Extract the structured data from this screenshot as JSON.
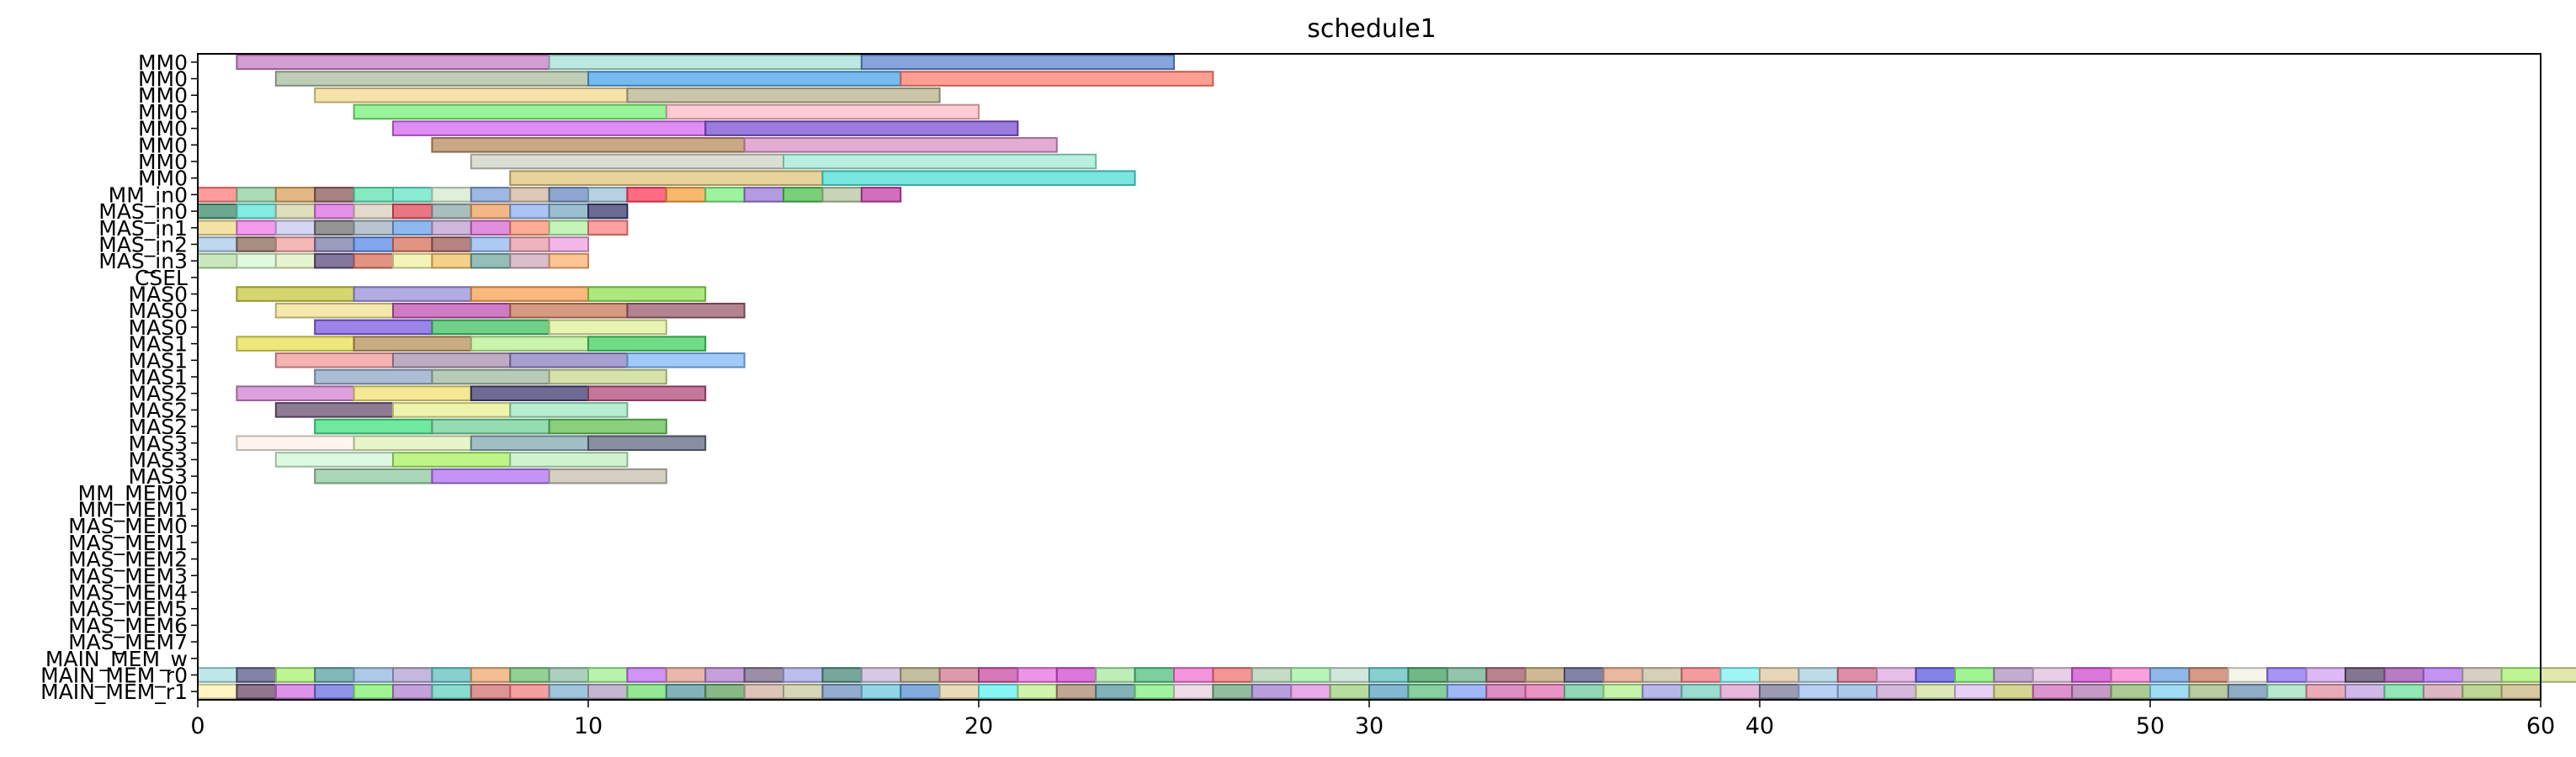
{
  "chart_data": {
    "type": "gantt",
    "title": "schedule1",
    "xlim": [
      0,
      60
    ],
    "xticks": [
      "0",
      "10",
      "20",
      "30",
      "40",
      "50",
      "60"
    ],
    "grid": false,
    "rows": [
      "MM0",
      "MM0",
      "MM0",
      "MM0",
      "MM0",
      "MM0",
      "MM0",
      "MM0",
      "MM_in0",
      "MAS_in0",
      "MAS_in1",
      "MAS_in2",
      "MAS_in3",
      "CSEL",
      "MAS0",
      "MAS0",
      "MAS0",
      "MAS1",
      "MAS1",
      "MAS1",
      "MAS2",
      "MAS2",
      "MAS2",
      "MAS3",
      "MAS3",
      "MAS3",
      "MM_MEM0",
      "MM_MEM1",
      "MAS_MEM0",
      "MAS_MEM1",
      "MAS_MEM2",
      "MAS_MEM3",
      "MAS_MEM4",
      "MAS_MEM5",
      "MAS_MEM6",
      "MAS_MEM7",
      "MAIN_MEM_w",
      "MAIN_MEM_r0",
      "MAIN_MEM_r1"
    ],
    "tasks": [
      {
        "row": 0,
        "start": 1,
        "end": 9,
        "color": "#c77dc4"
      },
      {
        "row": 0,
        "start": 9,
        "end": 17,
        "color": "#a7e0d8"
      },
      {
        "row": 0,
        "start": 17,
        "end": 25,
        "color": "#5f86d0"
      },
      {
        "row": 1,
        "start": 2,
        "end": 10,
        "color": "#a9bb9d"
      },
      {
        "row": 1,
        "start": 10,
        "end": 18,
        "color": "#4aa3e8"
      },
      {
        "row": 1,
        "start": 18,
        "end": 26,
        "color": "#ff7f6e"
      },
      {
        "row": 2,
        "start": 3,
        "end": 11,
        "color": "#f3d98e"
      },
      {
        "row": 2,
        "start": 11,
        "end": 19,
        "color": "#b8b38d"
      },
      {
        "row": 3,
        "start": 4,
        "end": 12,
        "color": "#77f077"
      },
      {
        "row": 3,
        "start": 12,
        "end": 20,
        "color": "#ffb9c5"
      },
      {
        "row": 4,
        "start": 5,
        "end": 13,
        "color": "#d467f2"
      },
      {
        "row": 4,
        "start": 13,
        "end": 21,
        "color": "#7a4fd3"
      },
      {
        "row": 5,
        "start": 6,
        "end": 14,
        "color": "#b88a5e"
      },
      {
        "row": 5,
        "start": 14,
        "end": 22,
        "color": "#d992c4"
      },
      {
        "row": 6,
        "start": 7,
        "end": 15,
        "color": "#cfd3c3"
      },
      {
        "row": 6,
        "start": 15,
        "end": 23,
        "color": "#a0ead4"
      },
      {
        "row": 7,
        "start": 8,
        "end": 16,
        "color": "#e0c47a"
      },
      {
        "row": 7,
        "start": 16,
        "end": 24,
        "color": "#4dded6"
      },
      {
        "row": 8,
        "start": 0,
        "end": 1,
        "color": "#ff7a7a"
      },
      {
        "row": 8,
        "start": 1,
        "end": 2,
        "color": "#8fcf9f"
      },
      {
        "row": 8,
        "start": 2,
        "end": 3,
        "color": "#d9a05b"
      },
      {
        "row": 8,
        "start": 3,
        "end": 4,
        "color": "#8a5a5a"
      },
      {
        "row": 8,
        "start": 4,
        "end": 5,
        "color": "#5fe0b0"
      },
      {
        "row": 8,
        "start": 5,
        "end": 6,
        "color": "#64e5c5"
      },
      {
        "row": 8,
        "start": 6,
        "end": 7,
        "color": "#d4ead0"
      },
      {
        "row": 8,
        "start": 7,
        "end": 8,
        "color": "#7ea0d8"
      },
      {
        "row": 8,
        "start": 8,
        "end": 9,
        "color": "#d3b6a0"
      },
      {
        "row": 8,
        "start": 9,
        "end": 10,
        "color": "#6a8ac0"
      },
      {
        "row": 8,
        "start": 10,
        "end": 11,
        "color": "#9fc0d8"
      },
      {
        "row": 8,
        "start": 11,
        "end": 12,
        "color": "#ff3a5a"
      },
      {
        "row": 8,
        "start": 12,
        "end": 13,
        "color": "#f7a13b"
      },
      {
        "row": 8,
        "start": 13,
        "end": 14,
        "color": "#7ef07e"
      },
      {
        "row": 8,
        "start": 14,
        "end": 15,
        "color": "#9a7ad8"
      },
      {
        "row": 8,
        "start": 15,
        "end": 16,
        "color": "#4cc04c"
      },
      {
        "row": 8,
        "start": 16,
        "end": 17,
        "color": "#b5c4a0"
      },
      {
        "row": 8,
        "start": 17,
        "end": 18,
        "color": "#c43ca8"
      },
      {
        "row": 9,
        "start": 0,
        "end": 1,
        "color": "#3d8a6a"
      },
      {
        "row": 9,
        "start": 1,
        "end": 2,
        "color": "#5ce5d8"
      },
      {
        "row": 9,
        "start": 2,
        "end": 3,
        "color": "#d4d4a8"
      },
      {
        "row": 9,
        "start": 3,
        "end": 4,
        "color": "#d96ee0"
      },
      {
        "row": 9,
        "start": 4,
        "end": 5,
        "color": "#d8cfbd"
      },
      {
        "row": 9,
        "start": 5,
        "end": 6,
        "color": "#e04a5a"
      },
      {
        "row": 9,
        "start": 6,
        "end": 7,
        "color": "#8fa8a8"
      },
      {
        "row": 9,
        "start": 7,
        "end": 8,
        "color": "#f0a060"
      },
      {
        "row": 9,
        "start": 8,
        "end": 9,
        "color": "#8fb0f0"
      },
      {
        "row": 9,
        "start": 9,
        "end": 10,
        "color": "#7aa8c0"
      },
      {
        "row": 9,
        "start": 10,
        "end": 11,
        "color": "#3a3a70"
      },
      {
        "row": 10,
        "start": 0,
        "end": 1,
        "color": "#f0d88a"
      },
      {
        "row": 10,
        "start": 1,
        "end": 2,
        "color": "#f07ae8"
      },
      {
        "row": 10,
        "start": 2,
        "end": 3,
        "color": "#c8c8f0"
      },
      {
        "row": 10,
        "start": 3,
        "end": 4,
        "color": "#707070"
      },
      {
        "row": 10,
        "start": 4,
        "end": 5,
        "color": "#a0b0c0"
      },
      {
        "row": 10,
        "start": 5,
        "end": 6,
        "color": "#6aa0e8"
      },
      {
        "row": 10,
        "start": 6,
        "end": 7,
        "color": "#c0a0d0"
      },
      {
        "row": 10,
        "start": 7,
        "end": 8,
        "color": "#d46ad0"
      },
      {
        "row": 10,
        "start": 8,
        "end": 9,
        "color": "#ff9070"
      },
      {
        "row": 10,
        "start": 9,
        "end": 10,
        "color": "#b0f0a0"
      },
      {
        "row": 10,
        "start": 10,
        "end": 11,
        "color": "#ff8080"
      },
      {
        "row": 11,
        "start": 0,
        "end": 1,
        "color": "#a8c8e8"
      },
      {
        "row": 11,
        "start": 1,
        "end": 2,
        "color": "#8a6a5a"
      },
      {
        "row": 11,
        "start": 2,
        "end": 3,
        "color": "#f0a0a0"
      },
      {
        "row": 11,
        "start": 3,
        "end": 4,
        "color": "#7a7aa8"
      },
      {
        "row": 11,
        "start": 4,
        "end": 5,
        "color": "#5a8ae8"
      },
      {
        "row": 11,
        "start": 5,
        "end": 6,
        "color": "#d8705a"
      },
      {
        "row": 11,
        "start": 6,
        "end": 7,
        "color": "#a05a5a"
      },
      {
        "row": 11,
        "start": 7,
        "end": 8,
        "color": "#90b8f0"
      },
      {
        "row": 11,
        "start": 8,
        "end": 9,
        "color": "#e89aa8"
      },
      {
        "row": 11,
        "start": 9,
        "end": 10,
        "color": "#f0a0e0"
      },
      {
        "row": 12,
        "start": 0,
        "end": 1,
        "color": "#b8e0a8"
      },
      {
        "row": 12,
        "start": 1,
        "end": 2,
        "color": "#d8f8d0"
      },
      {
        "row": 12,
        "start": 2,
        "end": 3,
        "color": "#e0f0c0"
      },
      {
        "row": 12,
        "start": 3,
        "end": 4,
        "color": "#5a4a7a"
      },
      {
        "row": 12,
        "start": 4,
        "end": 5,
        "color": "#d8705a"
      },
      {
        "row": 12,
        "start": 5,
        "end": 6,
        "color": "#f0f0a0"
      },
      {
        "row": 12,
        "start": 6,
        "end": 7,
        "color": "#f0c060"
      },
      {
        "row": 12,
        "start": 7,
        "end": 8,
        "color": "#70a8a0"
      },
      {
        "row": 12,
        "start": 8,
        "end": 9,
        "color": "#d0a8b8"
      },
      {
        "row": 12,
        "start": 9,
        "end": 10,
        "color": "#ffb070"
      },
      {
        "row": 14,
        "start": 1,
        "end": 4,
        "color": "#c8c840"
      },
      {
        "row": 14,
        "start": 4,
        "end": 7,
        "color": "#9a90d8"
      },
      {
        "row": 14,
        "start": 7,
        "end": 10,
        "color": "#f8a050"
      },
      {
        "row": 14,
        "start": 10,
        "end": 13,
        "color": "#90e050"
      },
      {
        "row": 15,
        "start": 2,
        "end": 5,
        "color": "#f0e090"
      },
      {
        "row": 15,
        "start": 5,
        "end": 8,
        "color": "#c050b0"
      },
      {
        "row": 15,
        "start": 8,
        "end": 11,
        "color": "#c8785a"
      },
      {
        "row": 15,
        "start": 11,
        "end": 14,
        "color": "#9a5a6a"
      },
      {
        "row": 16,
        "start": 3,
        "end": 6,
        "color": "#7a5ae0"
      },
      {
        "row": 16,
        "start": 6,
        "end": 9,
        "color": "#40c060"
      },
      {
        "row": 16,
        "start": 9,
        "end": 12,
        "color": "#e0f098"
      },
      {
        "row": 17,
        "start": 1,
        "end": 4,
        "color": "#e8e050"
      },
      {
        "row": 17,
        "start": 4,
        "end": 7,
        "color": "#b8905a"
      },
      {
        "row": 17,
        "start": 7,
        "end": 10,
        "color": "#b8f090"
      },
      {
        "row": 17,
        "start": 10,
        "end": 13,
        "color": "#40d060"
      },
      {
        "row": 18,
        "start": 2,
        "end": 5,
        "color": "#f09898"
      },
      {
        "row": 18,
        "start": 5,
        "end": 8,
        "color": "#a890b0"
      },
      {
        "row": 18,
        "start": 8,
        "end": 11,
        "color": "#8a80c0"
      },
      {
        "row": 18,
        "start": 11,
        "end": 14,
        "color": "#80b8f8"
      },
      {
        "row": 19,
        "start": 3,
        "end": 6,
        "color": "#90a8c8"
      },
      {
        "row": 19,
        "start": 6,
        "end": 9,
        "color": "#a0b8a0"
      },
      {
        "row": 19,
        "start": 9,
        "end": 12,
        "color": "#c8d890"
      },
      {
        "row": 20,
        "start": 1,
        "end": 4,
        "color": "#d080d0"
      },
      {
        "row": 20,
        "start": 4,
        "end": 7,
        "color": "#f0e070"
      },
      {
        "row": 20,
        "start": 7,
        "end": 10,
        "color": "#403a70"
      },
      {
        "row": 20,
        "start": 10,
        "end": 13,
        "color": "#b04a7a"
      },
      {
        "row": 21,
        "start": 2,
        "end": 5,
        "color": "#6a5070"
      },
      {
        "row": 21,
        "start": 5,
        "end": 8,
        "color": "#e8f090"
      },
      {
        "row": 21,
        "start": 8,
        "end": 11,
        "color": "#a0e8c0"
      },
      {
        "row": 22,
        "start": 3,
        "end": 6,
        "color": "#40e080"
      },
      {
        "row": 22,
        "start": 6,
        "end": 9,
        "color": "#70d098"
      },
      {
        "row": 22,
        "start": 9,
        "end": 12,
        "color": "#60c050"
      },
      {
        "row": 23,
        "start": 1,
        "end": 4,
        "color": "#fff0e8"
      },
      {
        "row": 23,
        "start": 4,
        "end": 7,
        "color": "#e0f0b8"
      },
      {
        "row": 23,
        "start": 7,
        "end": 10,
        "color": "#80a8b0"
      },
      {
        "row": 23,
        "start": 10,
        "end": 13,
        "color": "#606a80"
      },
      {
        "row": 24,
        "start": 2,
        "end": 5,
        "color": "#d0f8d8"
      },
      {
        "row": 24,
        "start": 5,
        "end": 8,
        "color": "#a8f060"
      },
      {
        "row": 24,
        "start": 8,
        "end": 11,
        "color": "#c0f0c0"
      },
      {
        "row": 25,
        "start": 3,
        "end": 6,
        "color": "#90c8a0"
      },
      {
        "row": 25,
        "start": 6,
        "end": 9,
        "color": "#b070f0"
      },
      {
        "row": 25,
        "start": 9,
        "end": 12,
        "color": "#c8c0b0"
      }
    ],
    "memory_rows": [
      {
        "row": 37,
        "colors": [
          "#a8e0e0",
          "#5a5a8a",
          "#a8f070",
          "#5aa0a0",
          "#90b8e0",
          "#b0a0d0",
          "#60c0c0",
          "#f0a870",
          "#70c070",
          "#90c0a8",
          "#a0f090",
          "#c070f0",
          "#e0a090",
          "#b080d0",
          "#7a6a8a",
          "#a8a8e8",
          "#4a8a7a",
          "#c8b8d8",
          "#b0a880",
          "#d07a90",
          "#c84aa0",
          "#e870e0",
          "#d04ad0",
          "#a8e8a0",
          "#50c080",
          "#f070d0",
          "#f07070",
          "#b0d0b0",
          "#a0f0a0",
          "#c0e0d0",
          "#60c0c0",
          "#40a060",
          "#70b090",
          "#a05a6a",
          "#c0a070",
          "#5a5a8a",
          "#e0a080",
          "#c8c0a0",
          "#f07a80",
          "#80f0f0",
          "#e0c8a0",
          "#a8d0e0",
          "#d06a8a",
          "#e0a8e0",
          "#5a5ae0",
          "#80f070",
          "#b090c0",
          "#e0c0e0",
          "#d04ad0",
          "#f880d0",
          "#6aa0e0",
          "#c87a60",
          "#f0f0e0",
          "#8a70f0",
          "#d0a0f0",
          "#5a4a6a",
          "#a050b0",
          "#b070f0",
          "#c8c0b0",
          "#a8f070",
          "#d8e090"
        ]
      },
      {
        "row": 38,
        "colors": [
          "#fff0b0",
          "#6a4a6a",
          "#d070e0",
          "#6a70e0",
          "#80f070",
          "#b080d0",
          "#60d0c0",
          "#d07070",
          "#f08080",
          "#80b0d0",
          "#b0a0c0",
          "#70e070",
          "#5a9aa0",
          "#60a060",
          "#d0b0a0",
          "#c8c8a0",
          "#7090c0",
          "#70c8e0",
          "#5a90d0",
          "#e0d0a0",
          "#60f0f0",
          "#c0f090",
          "#a88a70",
          "#5a9aa0",
          "#80f080",
          "#e8d0e0",
          "#70a880",
          "#a080d0",
          "#e090e0",
          "#a0d080",
          "#5aa0c0",
          "#60c080",
          "#80a0f0",
          "#d06ab0",
          "#e070b0",
          "#70c8a0",
          "#b0f090",
          "#a0a0e0",
          "#7ad0c0",
          "#e0a0d0",
          "#7a7a9a",
          "#a0c0f0",
          "#90b8e0",
          "#c8a0d0",
          "#d0e0a0",
          "#e0c0f0",
          "#c8c870",
          "#d070c0",
          "#b07ab0",
          "#90b870",
          "#80d0f0",
          "#a0b880",
          "#6a90b0",
          "#a0e0c0",
          "#e090a0",
          "#c0a0e0",
          "#70e0a0",
          "#d0a0b0",
          "#a8c870",
          "#c8b880"
        ]
      }
    ]
  }
}
